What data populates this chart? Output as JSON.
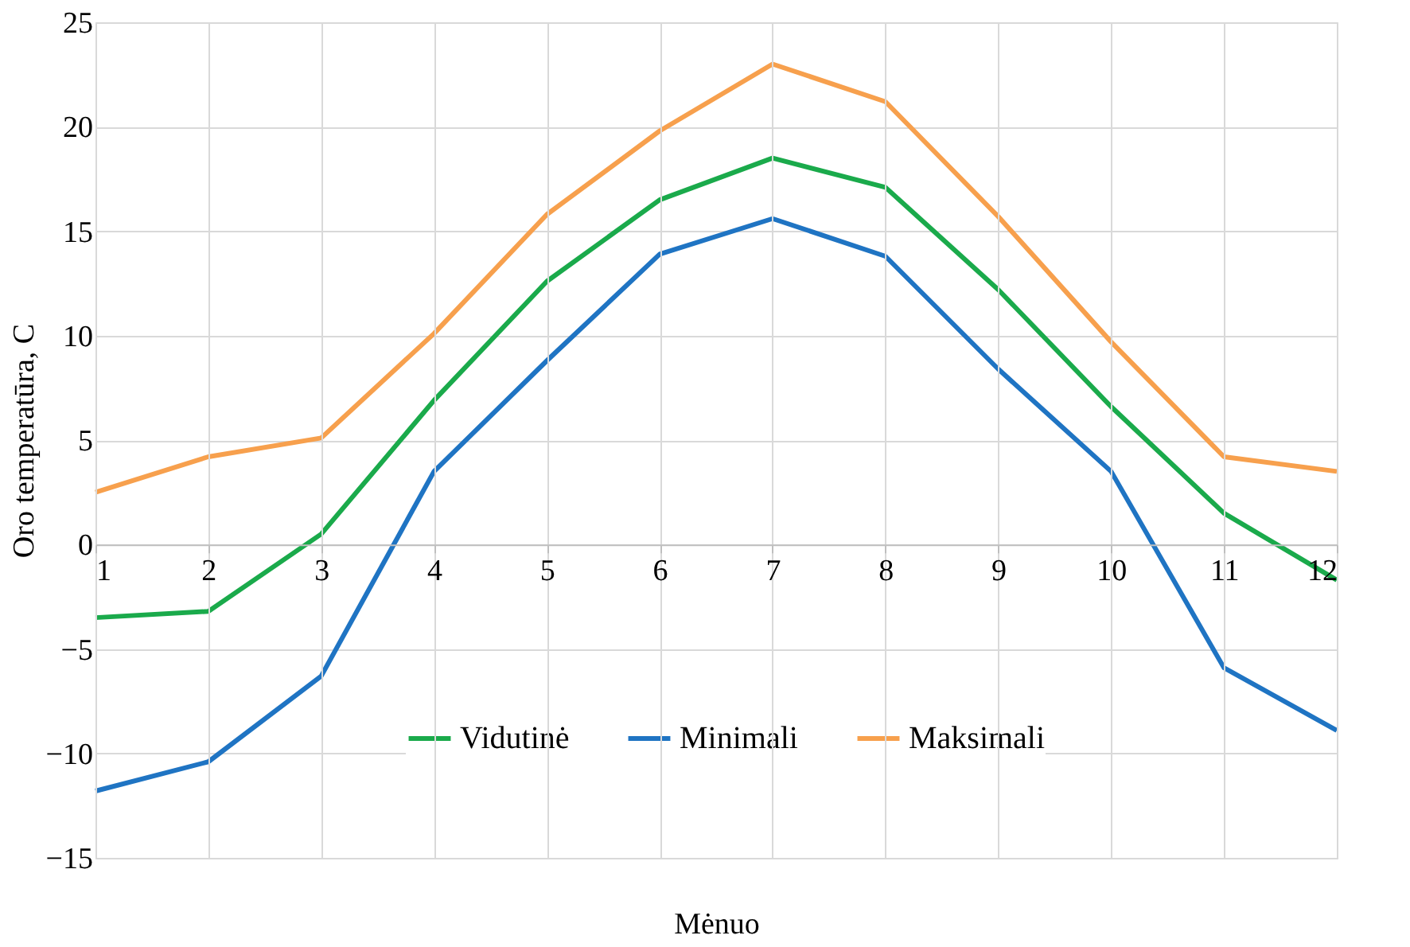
{
  "chart_data": {
    "type": "line",
    "xlabel": "Mėnuo",
    "ylabel": "Oro temperatūra, C",
    "x": [
      1,
      2,
      3,
      4,
      5,
      6,
      7,
      8,
      9,
      10,
      11,
      12
    ],
    "series": [
      {
        "name": "Vidutinė",
        "color": "#1aaa4b",
        "values": [
          -3.5,
          -3.2,
          0.5,
          6.9,
          12.6,
          16.5,
          18.5,
          17.1,
          12.2,
          6.6,
          1.5,
          -1.7
        ]
      },
      {
        "name": "Minimali",
        "color": "#1f74c3",
        "values": [
          -11.8,
          -10.4,
          -6.3,
          3.5,
          8.8,
          13.9,
          15.6,
          13.8,
          8.4,
          3.5,
          -5.9,
          -8.9
        ]
      },
      {
        "name": "Maksimali",
        "color": "#f7a04d",
        "values": [
          2.5,
          4.2,
          5.1,
          10.1,
          15.8,
          19.8,
          23.0,
          21.2,
          15.7,
          9.7,
          4.2,
          3.5
        ]
      }
    ],
    "xlim": [
      1,
      12
    ],
    "xticks": [
      1,
      2,
      3,
      4,
      5,
      6,
      7,
      8,
      9,
      10,
      11,
      12
    ],
    "ylim": [
      -15,
      25
    ],
    "yticks": [
      -15,
      -10,
      -5,
      0,
      5,
      10,
      15,
      20,
      25
    ],
    "grid": true,
    "legend": "bottom",
    "marker": "none",
    "line_style": "solid"
  }
}
